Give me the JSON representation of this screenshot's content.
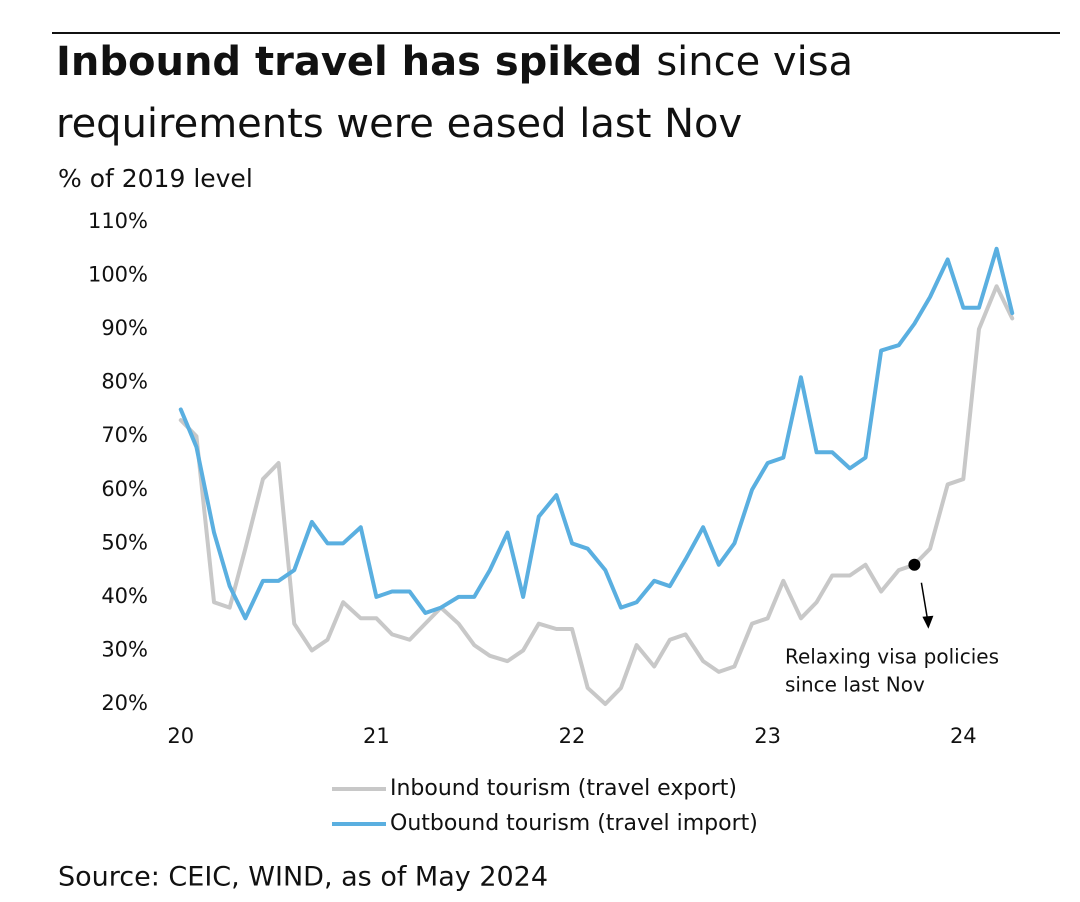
{
  "chart_data": {
    "type": "line",
    "title": [
      "Inbound travel has spiked",
      "since visa",
      "requirements were eased last Nov"
    ],
    "subtitle": "% of 2019 level",
    "source": "Source: CEIC, WIND, as of May 2024",
    "annotation": [
      "Relaxing visa policies",
      "since last Nov"
    ],
    "x": [
      20,
      20.08,
      20.17,
      20.25,
      20.33,
      20.42,
      20.5,
      20.58,
      20.67,
      20.75,
      20.83,
      20.92,
      21,
      21.08,
      21.17,
      21.25,
      21.33,
      21.42,
      21.5,
      21.58,
      21.67,
      21.75,
      21.83,
      21.92,
      22,
      22.08,
      22.17,
      22.25,
      22.33,
      22.42,
      22.5,
      22.58,
      22.67,
      22.75,
      22.83,
      22.92,
      23,
      23.08,
      23.17,
      23.25,
      23.33,
      23.42,
      23.5,
      23.58,
      23.67,
      23.75,
      23.83,
      23.92,
      24,
      24.08,
      24.17,
      24.25
    ],
    "series": [
      {
        "name": "Inbound tourism (travel export)",
        "color": "#c8c8c8",
        "values": [
          73,
          70,
          39,
          38,
          49,
          62,
          65,
          35,
          30,
          32,
          39,
          36,
          36,
          33,
          32,
          35,
          38,
          35,
          31,
          29,
          28,
          30,
          35,
          34,
          34,
          23,
          20,
          23,
          31,
          27,
          32,
          33,
          28,
          26,
          27,
          35,
          36,
          43,
          36,
          39,
          44,
          44,
          46,
          41,
          45,
          46,
          49,
          61,
          62,
          90,
          98,
          92
        ]
      },
      {
        "name": "Outbound tourism (travel import)",
        "color": "#5aafe0",
        "values": [
          75,
          68,
          52,
          42,
          36,
          43,
          43,
          45,
          54,
          50,
          50,
          53,
          40,
          41,
          41,
          37,
          38,
          40,
          40,
          45,
          52,
          40,
          55,
          59,
          50,
          49,
          45,
          38,
          39,
          43,
          42,
          47,
          53,
          46,
          50,
          60,
          65,
          66,
          81,
          67,
          67,
          64,
          66,
          86,
          87,
          91,
          96,
          103,
          94,
          94,
          105,
          93
        ]
      }
    ],
    "xlim": [
      19.95,
      24.3
    ],
    "xticks": [
      20,
      21,
      22,
      23,
      24
    ],
    "ylim": [
      20,
      110
    ],
    "yticks": [
      {
        "value": 20,
        "label": "20%"
      },
      {
        "value": 30,
        "label": "30%"
      },
      {
        "value": 40,
        "label": "40%"
      },
      {
        "value": 50,
        "label": "50%"
      },
      {
        "value": 60,
        "label": "60%"
      },
      {
        "value": 70,
        "label": "70%"
      },
      {
        "value": 80,
        "label": "80%"
      },
      {
        "value": 90,
        "label": "90%"
      },
      {
        "value": 100,
        "label": "100%"
      },
      {
        "value": 110,
        "label": "110%"
      }
    ],
    "grid": false
  }
}
